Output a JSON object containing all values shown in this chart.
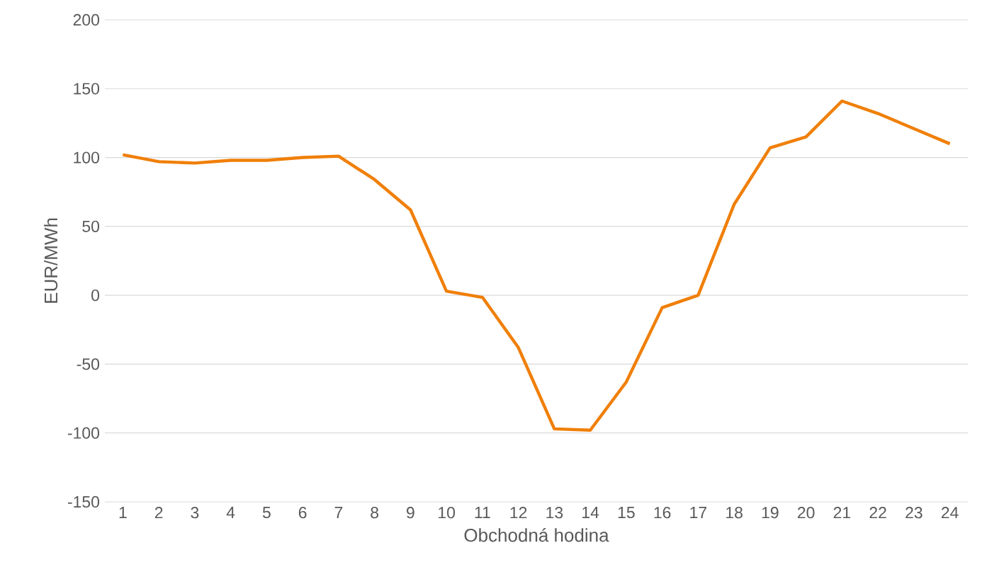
{
  "chart_data": {
    "type": "line",
    "xlabel": "Obchodná hodina",
    "ylabel": "EUR/MWh",
    "categories": [
      "1",
      "2",
      "3",
      "4",
      "5",
      "6",
      "7",
      "8",
      "9",
      "10",
      "11",
      "12",
      "13",
      "14",
      "15",
      "16",
      "17",
      "18",
      "19",
      "20",
      "21",
      "22",
      "23",
      "24"
    ],
    "values": [
      102,
      97,
      96,
      98,
      98,
      100,
      101,
      84,
      62,
      3,
      -1.5,
      -38,
      -97,
      -98,
      -63,
      -9,
      0,
      66,
      107,
      115,
      141,
      132,
      121,
      110
    ],
    "color": "#f07f09",
    "ylim": [
      -150,
      200
    ],
    "yticks": [
      -150,
      -100,
      -50,
      0,
      50,
      100,
      150,
      200
    ],
    "grid": "y"
  }
}
